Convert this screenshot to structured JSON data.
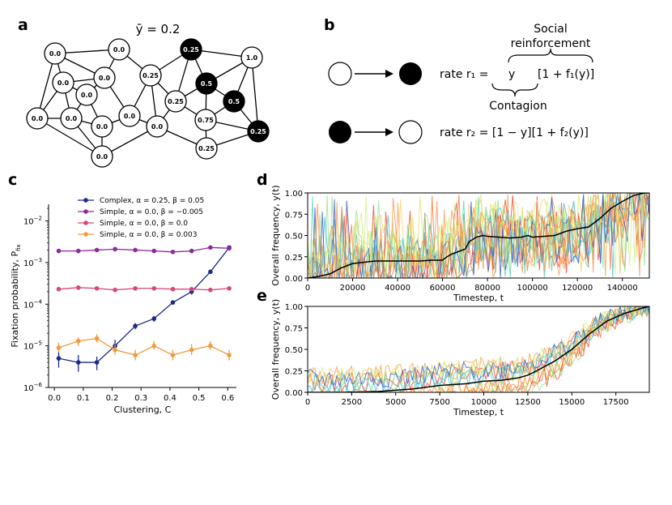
{
  "panels": {
    "a": "a",
    "b": "b",
    "c": "c",
    "d": "d",
    "e": "e"
  },
  "panel_a": {
    "title": "ȳ = 0.2",
    "nodes": [
      {
        "id": "n1",
        "label": "0.0",
        "filled": false
      },
      {
        "id": "n2",
        "label": "0.0",
        "filled": false
      },
      {
        "id": "n3",
        "label": "0.0",
        "filled": false
      },
      {
        "id": "n4",
        "label": "0.0",
        "filled": false
      },
      {
        "id": "n5",
        "label": "0.0",
        "filled": false
      },
      {
        "id": "n6",
        "label": "0.0",
        "filled": false
      },
      {
        "id": "n7",
        "label": "0.0",
        "filled": false
      },
      {
        "id": "n8",
        "label": "0.0",
        "filled": false
      },
      {
        "id": "n9",
        "label": "0.0",
        "filled": false
      },
      {
        "id": "n10",
        "label": "0.0",
        "filled": false
      },
      {
        "id": "n11",
        "label": "0.25",
        "filled": false
      },
      {
        "id": "n12",
        "label": "0.25",
        "filled": true
      },
      {
        "id": "n13",
        "label": "1.0",
        "filled": false
      },
      {
        "id": "n14",
        "label": "0.5",
        "filled": true
      },
      {
        "id": "n15",
        "label": "0.25",
        "filled": false
      },
      {
        "id": "n16",
        "label": "0.5",
        "filled": true
      },
      {
        "id": "n17",
        "label": "0.0",
        "filled": false
      },
      {
        "id": "n18",
        "label": "0.75",
        "filled": false
      },
      {
        "id": "n19",
        "label": "0.25",
        "filled": true
      },
      {
        "id": "n20",
        "label": "0.25",
        "filled": false
      }
    ]
  },
  "panel_b": {
    "social_reinforcement_line1": "Social",
    "social_reinforcement_line2": "reinforcement",
    "rate1_lhs": "rate r₁ =",
    "rate1_y": "y",
    "rate1_bracket": "[1 + f₁(y)]",
    "contagion": "Contagion",
    "rate2": "rate r₂ = [1 − y][1 + f₂(y)]"
  },
  "chart_data": [
    {
      "panel": "c",
      "type": "line",
      "xlabel": "Clustering, C",
      "ylabel": "Fixation probability, P",
      "ylabel_sub": "fix",
      "yscale": "log",
      "xlim": [
        -0.02,
        0.63
      ],
      "ylim_exp": [
        -6,
        -1.6
      ],
      "xticks": [
        "0.0",
        "0.1",
        "0.2",
        "0.3",
        "0.4",
        "0.5",
        "0.6"
      ],
      "xtick_values": [
        0.0,
        0.1,
        0.2,
        0.3,
        0.4,
        0.5,
        0.6
      ],
      "yticks": [
        {
          "base": "10",
          "exp": "−2",
          "value": -2
        },
        {
          "base": "10",
          "exp": "−3",
          "value": -3
        },
        {
          "base": "10",
          "exp": "−4",
          "value": -4
        },
        {
          "base": "10",
          "exp": "−5",
          "value": -5
        },
        {
          "base": "10",
          "exp": "−6",
          "value": -6
        }
      ],
      "x": [
        0.015,
        0.083,
        0.147,
        0.21,
        0.28,
        0.345,
        0.41,
        0.475,
        0.54,
        0.605
      ],
      "series": [
        {
          "name": "Complex, α = 0.25, β = 0.05",
          "color": "#1c2a8c",
          "values": [
            5e-06,
            4e-06,
            4e-06,
            1e-05,
            3e-05,
            4.5e-05,
            0.00011,
            0.0002,
            0.0006,
            0.0023
          ],
          "err_lo": [
            3e-06,
            2.4e-06,
            2.6e-06,
            7e-06,
            2.5e-05,
            3.8e-05,
            0.0001,
            0.00017,
            0.00056,
            0.0021
          ],
          "err_hi": [
            7e-06,
            6e-06,
            5.5e-06,
            1.4e-05,
            3.5e-05,
            5.2e-05,
            0.00012,
            0.00023,
            0.00064,
            0.0025
          ]
        },
        {
          "name": "Simple, α = 0.0, β = −0.005",
          "color": "#8e2a9c",
          "values": [
            0.0019,
            0.0019,
            0.002,
            0.0021,
            0.002,
            0.0019,
            0.0018,
            0.0019,
            0.0023,
            0.0022
          ]
        },
        {
          "name": "Simple, α = 0.0, β = 0.0",
          "color": "#d4487a",
          "values": [
            0.00023,
            0.00025,
            0.00024,
            0.00022,
            0.00024,
            0.00024,
            0.00023,
            0.00023,
            0.00022,
            0.00024
          ]
        },
        {
          "name": "Simple, α = 0.0, β = 0.003",
          "color": "#f39a40",
          "values": [
            9e-06,
            1.3e-05,
            1.5e-05,
            8e-06,
            6e-06,
            1e-05,
            6e-06,
            8e-06,
            1e-05,
            6e-06
          ],
          "err_lo": [
            7e-06,
            1e-05,
            1.2e-05,
            6e-06,
            4.5e-06,
            8e-06,
            4.5e-06,
            6e-06,
            8e-06,
            4.5e-06
          ],
          "err_hi": [
            1.2e-05,
            1.6e-05,
            1.9e-05,
            1.1e-05,
            8e-06,
            1.3e-05,
            8e-06,
            1.1e-05,
            1.3e-05,
            8e-06
          ]
        }
      ]
    },
    {
      "panel": "d",
      "type": "line",
      "xlabel": "Timestep, t",
      "ylabel": "Overall frequency, y(t)",
      "xlim": [
        0,
        152000
      ],
      "ylim": [
        0,
        1
      ],
      "xticks": [
        "0",
        "20000",
        "40000",
        "60000",
        "80000",
        "100000",
        "120000",
        "140000"
      ],
      "xtick_values": [
        0,
        20000,
        40000,
        60000,
        80000,
        100000,
        120000,
        140000
      ],
      "yticks": [
        "0.00",
        "0.25",
        "0.50",
        "0.75",
        "1.00"
      ],
      "ytick_values": [
        0,
        0.25,
        0.5,
        0.75,
        1.0
      ],
      "mean_series": {
        "name": "mean",
        "color": "#000000",
        "x": [
          0,
          5000,
          10000,
          15000,
          20000,
          30000,
          40000,
          50000,
          55000,
          60000,
          62000,
          64000,
          66000,
          70000,
          72000,
          75000,
          78000,
          80000,
          90000,
          95000,
          98000,
          100000,
          110000,
          115000,
          120000,
          125000,
          130000,
          135000,
          140000,
          145000,
          150000,
          152000
        ],
        "y": [
          0.0,
          0.02,
          0.05,
          0.12,
          0.17,
          0.2,
          0.2,
          0.2,
          0.21,
          0.21,
          0.25,
          0.28,
          0.3,
          0.34,
          0.43,
          0.48,
          0.5,
          0.49,
          0.47,
          0.48,
          0.5,
          0.48,
          0.5,
          0.55,
          0.58,
          0.6,
          0.7,
          0.82,
          0.9,
          0.97,
          1.0,
          1.0
        ]
      }
    },
    {
      "panel": "e",
      "type": "line",
      "xlabel": "Timestep, t",
      "ylabel": "Overall frequency, y(t)",
      "xlim": [
        0,
        19400
      ],
      "ylim": [
        0,
        1
      ],
      "xticks": [
        "0",
        "2500",
        "5000",
        "7500",
        "10000",
        "12500",
        "15000",
        "17500"
      ],
      "xtick_values": [
        0,
        2500,
        5000,
        7500,
        10000,
        12500,
        15000,
        17500
      ],
      "yticks": [
        "0.00",
        "0.25",
        "0.50",
        "0.75",
        "1.00"
      ],
      "ytick_values": [
        0,
        0.25,
        0.5,
        0.75,
        1.0
      ],
      "mean_series": {
        "name": "mean",
        "color": "#000000",
        "x": [
          0,
          2000,
          4000,
          6000,
          7500,
          9000,
          10000,
          11000,
          12000,
          12500,
          13000,
          14000,
          15000,
          16000,
          17000,
          18000,
          19000,
          19400
        ],
        "y": [
          0.0,
          0.0,
          0.01,
          0.04,
          0.08,
          0.1,
          0.13,
          0.14,
          0.17,
          0.2,
          0.25,
          0.36,
          0.5,
          0.68,
          0.83,
          0.92,
          0.98,
          1.0
        ]
      }
    }
  ]
}
